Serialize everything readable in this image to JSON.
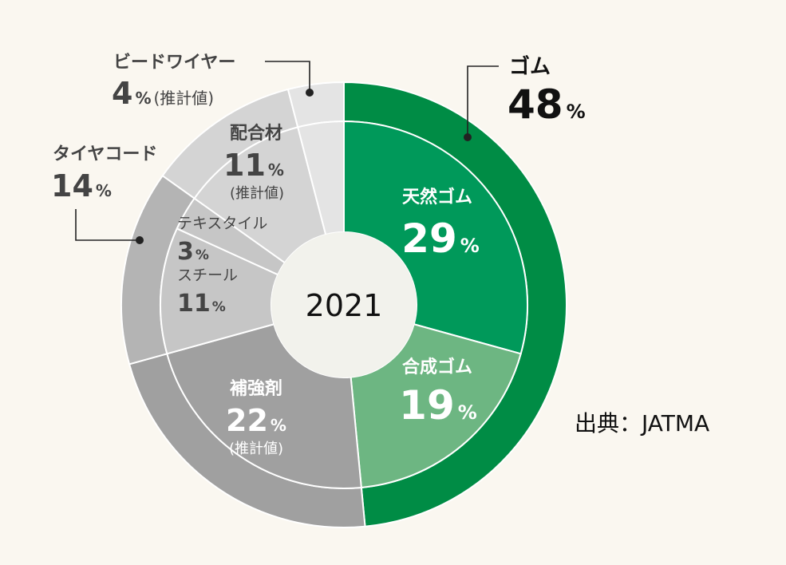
{
  "chart_data": {
    "type": "pie",
    "title": "2021",
    "source": "出典：JATMA",
    "outer_ring": [
      {
        "name": "ゴム",
        "value": 48,
        "color": "#008c45"
      },
      {
        "name": "補強剤",
        "value": 22,
        "note": "(推計値)",
        "color": "#a0a0a0"
      },
      {
        "name": "タイヤコード",
        "value": 14,
        "color": "#b4b4b4"
      },
      {
        "name": "配合材",
        "value": 11,
        "note": "(推計値)",
        "color": "#d4d4d4"
      },
      {
        "name": "ビードワイヤー",
        "value": 4,
        "note": "(推計値)",
        "color": "#e4e4e4"
      }
    ],
    "inner_ring": [
      {
        "name": "天然ゴム",
        "value": 29,
        "color": "#00995a",
        "parent": "ゴム"
      },
      {
        "name": "合成ゴム",
        "value": 19,
        "color": "#6db682",
        "parent": "ゴム"
      },
      {
        "name": "補強剤",
        "value": 22,
        "color": "#a0a0a0",
        "parent": "補強剤"
      },
      {
        "name": "スチール",
        "value": 11,
        "color": "#c6c6c6",
        "parent": "タイヤコード"
      },
      {
        "name": "テキスタイル",
        "value": 3,
        "color": "#c6c6c6",
        "parent": "タイヤコード"
      },
      {
        "name": "配合材",
        "value": 11,
        "color": "#d4d4d4",
        "parent": "配合材"
      },
      {
        "name": "ビードワイヤー",
        "value": 4,
        "color": "#e4e4e4",
        "parent": "ビードワイヤー"
      }
    ]
  },
  "labels": {
    "gomu": {
      "name": "ゴム",
      "value": "48",
      "unit": "%"
    },
    "tennen": {
      "name": "天然ゴム",
      "value": "29",
      "unit": "%"
    },
    "gousei": {
      "name": "合成ゴム",
      "value": "19",
      "unit": "%"
    },
    "hokyou": {
      "name": "補強剤",
      "value": "22",
      "unit": "%",
      "note": "(推計値)"
    },
    "haigou": {
      "name": "配合材",
      "value": "11",
      "unit": "%",
      "note": "(推計値)"
    },
    "bead": {
      "name": "ビードワイヤー",
      "value": "4",
      "unit": "%",
      "note": "(推計値)"
    },
    "cord": {
      "name": "タイヤコード",
      "value": "14",
      "unit": "%"
    },
    "textile": {
      "name": "テキスタイル",
      "value": "3",
      "unit": "%"
    },
    "steel": {
      "name": "スチール",
      "value": "11",
      "unit": "%"
    },
    "year": "2021",
    "source": "出典：JATMA"
  }
}
